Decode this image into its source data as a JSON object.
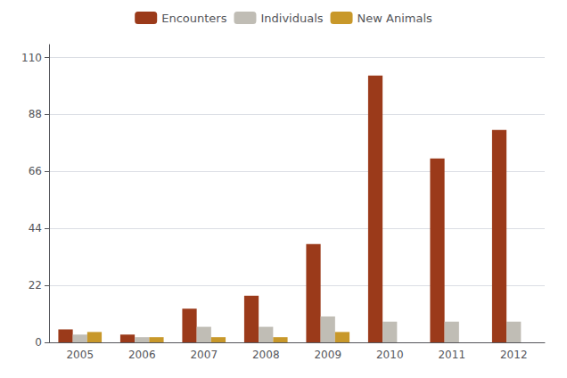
{
  "chart_data": {
    "type": "bar",
    "categories": [
      "2005",
      "2006",
      "2007",
      "2008",
      "2009",
      "2010",
      "2011",
      "2012"
    ],
    "series": [
      {
        "name": "Encounters",
        "color": "#9B3A1A",
        "values": [
          5,
          3,
          13,
          18,
          38,
          103,
          71,
          82
        ]
      },
      {
        "name": "Individuals",
        "color": "#C0BDB5",
        "values": [
          3,
          2,
          6,
          6,
          10,
          8,
          8,
          8
        ]
      },
      {
        "name": "New Animals",
        "color": "#C8982A",
        "values": [
          4,
          2,
          2,
          2,
          4,
          0,
          0,
          0
        ]
      }
    ],
    "ylim": [
      0,
      115
    ],
    "yticks": [
      0,
      22,
      44,
      66,
      88,
      110
    ],
    "grid": true,
    "legend": "top"
  }
}
